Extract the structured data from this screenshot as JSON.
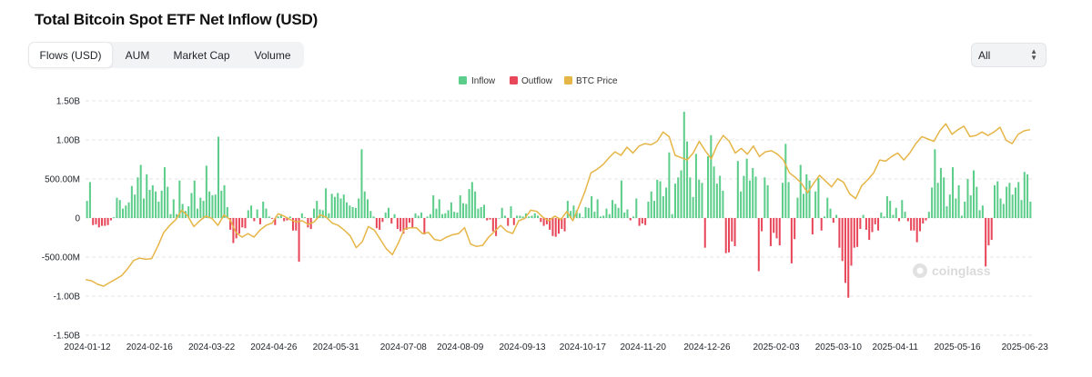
{
  "page": {
    "title": "Total Bitcoin Spot ETF Net Inflow (USD)"
  },
  "tabs": [
    {
      "label": "Flows (USD)",
      "active": true
    },
    {
      "label": "AUM",
      "active": false
    },
    {
      "label": "Market Cap",
      "active": false
    },
    {
      "label": "Volume",
      "active": false
    }
  ],
  "range_select": {
    "value": "All"
  },
  "watermark": {
    "text": "coinglass"
  },
  "colors": {
    "inflow": "#5ccd8a",
    "outflow": "#e8475a",
    "price": "#e6b547",
    "grid": "#e6e6e6"
  },
  "chart_data": {
    "type": "bar",
    "title": "Total Bitcoin Spot ETF Net Inflow (USD)",
    "legend": {
      "position": "top-center",
      "entries": [
        "Inflow",
        "Outflow",
        "BTC Price"
      ]
    },
    "grid": true,
    "y_axis": {
      "range": [
        -1.5,
        1.5
      ],
      "unit": "billion USD",
      "tick_values": [
        1.5,
        1.0,
        0.5,
        0,
        -0.5,
        -1.0,
        -1.5
      ],
      "tick_labels": [
        "1.50B",
        "1.00B",
        "500.00M",
        "0",
        "-500.00M",
        "-1.00B",
        "-1.50B"
      ]
    },
    "x_axis": {
      "range": [
        "2024-01-12",
        "2025-06-27"
      ],
      "tick_labels": [
        "2024-01-12",
        "2024-02-16",
        "2024-03-22",
        "2024-04-26",
        "2024-05-31",
        "2024-07-08",
        "2024-08-09",
        "2024-09-13",
        "2024-10-17",
        "2024-11-20",
        "2024-12-26",
        "2025-02-03",
        "2025-03-10",
        "2025-04-11",
        "2025-05-16",
        "2025-06-23"
      ]
    },
    "series": [
      {
        "name": "Inflow / Outflow",
        "unit": "billion USD",
        "values": [
          0.22,
          0.46,
          -0.09,
          -0.08,
          -0.12,
          -0.1,
          -0.1,
          -0.09,
          -0.03,
          0.01,
          0.26,
          0.23,
          0.12,
          0.16,
          0.2,
          0.41,
          0.3,
          0.52,
          0.68,
          0.25,
          0.56,
          0.36,
          0.42,
          0.34,
          0.21,
          0.35,
          0.65,
          0.4,
          0.05,
          0.24,
          0.05,
          0.48,
          0.18,
          0.09,
          0.15,
          0.32,
          0.48,
          0.12,
          0.26,
          0.22,
          0.67,
          0.34,
          0.29,
          0.3,
          1.04,
          0.35,
          0.42,
          0.14,
          -0.15,
          -0.32,
          -0.26,
          -0.2,
          -0.12,
          -0.13,
          0.1,
          0.16,
          -0.04,
          0.11,
          -0.08,
          0.21,
          0.12,
          0.02,
          -0.01,
          -0.09,
          0.02,
          0.05,
          -0.04,
          -0.03,
          0.02,
          -0.16,
          -0.16,
          -0.56,
          0.06,
          0.01,
          -0.12,
          -0.14,
          0.12,
          0.22,
          0.11,
          0.1,
          0.38,
          0.06,
          0.31,
          0.27,
          0.32,
          0.25,
          0.3,
          0.2,
          0.16,
          0.14,
          0.13,
          0.25,
          0.88,
          0.34,
          0.24,
          0.09,
          0.02,
          -0.13,
          -0.15,
          -0.05,
          0.07,
          0.13,
          -0.07,
          0.05,
          -0.14,
          -0.17,
          -0.2,
          -0.15,
          -0.06,
          -0.12,
          0.06,
          0.03,
          0.07,
          -0.21,
          0.02,
          0.05,
          0.29,
          0.12,
          0.24,
          0.05,
          0.06,
          0.1,
          0.2,
          0.08,
          0.07,
          0.29,
          0.19,
          0.18,
          0.37,
          0.46,
          0.34,
          0.12,
          0.14,
          0.17,
          -0.03,
          -0.02,
          -0.17,
          -0.23,
          0.0,
          0.13,
          0.03,
          -0.1,
          0.15,
          -0.09,
          0.03,
          0.03,
          0.02,
          0.06,
          0.02,
          0.03,
          0.06,
          0.03,
          -0.05,
          -0.1,
          -0.08,
          -0.15,
          -0.23,
          -0.24,
          -0.2,
          -0.14,
          -0.17,
          0.22,
          0.09,
          0.16,
          0.1,
          0.06,
          0.01,
          0.14,
          0.13,
          0.28,
          0.08,
          0.24,
          0.02,
          0.03,
          0.12,
          0.05,
          0.23,
          0.18,
          0.13,
          0.48,
          0.07,
          0.11,
          -0.03,
          0.02,
          0.25,
          -0.1,
          -0.07,
          -0.09,
          0.21,
          0.34,
          0.22,
          0.49,
          0.47,
          0.28,
          0.39,
          0.84,
          0.05,
          0.44,
          0.52,
          0.61,
          1.36,
          0.98,
          0.52,
          0.27,
          0.82,
          0.49,
          0.45,
          -0.38,
          0.79,
          1.06,
          0.66,
          0.44,
          0.54,
          0.35,
          -0.45,
          -0.44,
          -0.3,
          -0.36,
          0.73,
          0.34,
          0.54,
          0.76,
          0.48,
          0.64,
          0.53,
          -0.68,
          -0.17,
          0.52,
          0.42,
          -0.36,
          -0.19,
          -0.26,
          -0.35,
          0.45,
          0.95,
          0.46,
          -0.58,
          -0.27,
          0.26,
          0.68,
          0.31,
          0.56,
          0.48,
          -0.21,
          0.34,
          0.51,
          -0.16,
          0.02,
          0.26,
          0.12,
          -0.06,
          0.04,
          -0.38,
          -0.55,
          -0.83,
          -1.02,
          -0.61,
          -0.38,
          -0.37,
          -0.14,
          0.04,
          -0.15,
          -0.28,
          -0.18,
          -0.08,
          -0.16,
          0.07,
          0.02,
          0.28,
          0.22,
          0.04,
          0.13,
          -0.04,
          0.23,
          0.08,
          -0.04,
          -0.16,
          -0.16,
          -0.31,
          -0.17,
          -0.07,
          -0.03,
          0.08,
          0.39,
          0.88,
          0.45,
          0.64,
          0.52,
          0.15,
          0.3,
          0.65,
          0.25,
          0.42,
          0.03,
          0.21,
          0.5,
          0.29,
          0.61,
          0.4,
          0.1,
          0.16,
          -0.62,
          -0.35,
          -0.28,
          0.42,
          0.47,
          0.25,
          0.18,
          0.4,
          0.45,
          0.3,
          0.39,
          0.46,
          0.23,
          0.59,
          0.56,
          0.21
        ]
      },
      {
        "name": "BTC Price",
        "unit": "USD",
        "values": [
          42800,
          42300,
          40800,
          40000,
          41500,
          43000,
          44500,
          47500,
          51000,
          52000,
          51500,
          51800,
          57000,
          63000,
          66000,
          68500,
          72500,
          70000,
          65500,
          68000,
          70000,
          69000,
          66000,
          70500,
          68500,
          63000,
          61000,
          62500,
          61000,
          64000,
          66000,
          67000,
          71000,
          70000,
          68500,
          67500,
          68000,
          66500,
          67500,
          70500,
          69500,
          67000,
          66000,
          64000,
          61500,
          56500,
          59000,
          65500,
          64000,
          60000,
          56000,
          53500,
          58500,
          64500,
          65000,
          65000,
          62500,
          63000,
          60000,
          59500,
          61000,
          62000,
          62500,
          65000,
          58000,
          57000,
          57500,
          61000,
          63500,
          66000,
          63500,
          62500,
          68000,
          69000,
          72500,
          72000,
          69500,
          68000,
          70000,
          68500,
          72000,
          68000,
          74000,
          80500,
          88500,
          90000,
          92000,
          95000,
          97500,
          96000,
          99500,
          97000,
          100000,
          101000,
          100500,
          102000,
          106000,
          104000,
          96000,
          95000,
          94000,
          97000,
          102000,
          98000,
          94500,
          100500,
          104500,
          102000,
          97000,
          99000,
          96500,
          100000,
          95500,
          97500,
          98000,
          96500,
          94000,
          88500,
          86500,
          84000,
          80000,
          84000,
          87500,
          85000,
          82500,
          86000,
          84500,
          79500,
          77500,
          83000,
          85500,
          88500,
          94000,
          93500,
          95500,
          97000,
          94000,
          97000,
          101000,
          104000,
          103000,
          102000,
          106500,
          109500,
          105000,
          107000,
          108500,
          104000,
          104500,
          106000,
          104500,
          106000,
          108000,
          102500,
          101000,
          105000,
          106500,
          107000
        ]
      }
    ]
  }
}
